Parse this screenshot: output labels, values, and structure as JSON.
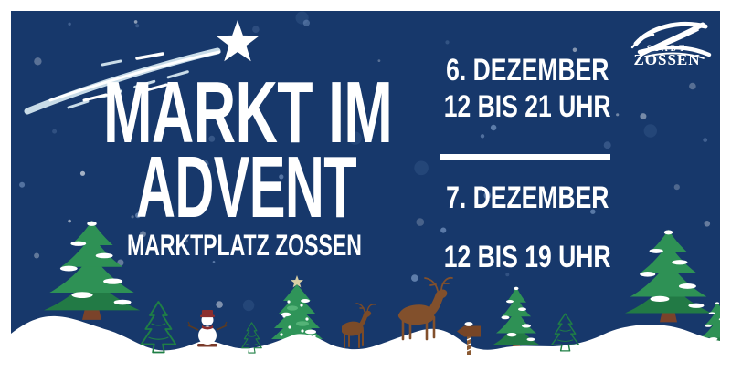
{
  "poster": {
    "title": {
      "line1": "MARKT IM",
      "line2": "ADVENT"
    },
    "subtitle": "MARKTPLATZ ZOSSEN",
    "schedule": {
      "items": [
        {
          "date": "6. DEZEMBER",
          "time": "12 BIS 21 UHR"
        },
        {
          "date": "7. DEZEMBER",
          "time": "12 BIS 19 UHR"
        }
      ]
    },
    "logo": {
      "stadt": "STADT",
      "zossen": "ZOSSEN"
    },
    "colors": {
      "background": "#17386b",
      "text": "#ffffff",
      "comet_trail": "#c9dce8",
      "snow": "#ffffff",
      "tree_green": "#2e9155",
      "tree_green_light": "#54b377",
      "tree_line_green": "#1f7f45",
      "trunk_brown": "#7b432a",
      "deer_brown": "#82502c",
      "accent_red": "#8b2f2f",
      "tree_star": "#d9cfa4"
    }
  }
}
